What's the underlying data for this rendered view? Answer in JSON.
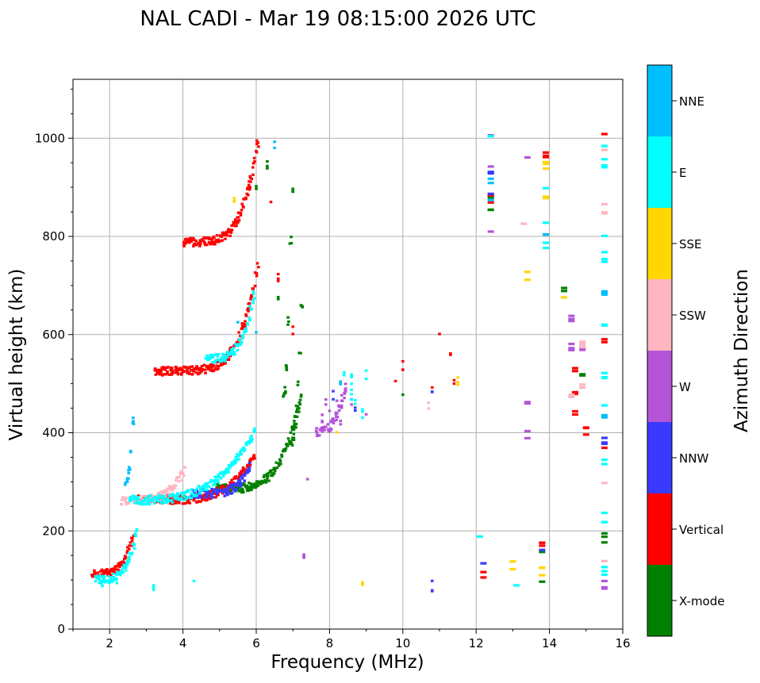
{
  "chart_data": {
    "type": "scatter",
    "title": "NAL CADI - Mar 19 08:15:00 2026 UTC",
    "xlabel": "Frequency (MHz)",
    "ylabel": "Virtual height (km)",
    "xlim": [
      1,
      16
    ],
    "ylim": [
      0,
      1120
    ],
    "xticks": [
      2,
      4,
      6,
      8,
      10,
      12,
      14,
      16
    ],
    "yticks": [
      0,
      200,
      400,
      600,
      800,
      1000
    ],
    "grid": true,
    "colorbar": {
      "label": "Azimuth Direction",
      "position": "right",
      "categories": [
        "X-mode",
        "Vertical",
        "NNW",
        "W",
        "SSW",
        "SSE",
        "E",
        "NNE"
      ],
      "colors": [
        "#008000",
        "#ff0000",
        "#3a3aff",
        "#b455d8",
        "#ffb6c1",
        "#ffd700",
        "#00ffff",
        "#00bfff"
      ]
    },
    "series": [
      {
        "name": "X-mode",
        "traces": [
          {
            "f0": 4.9,
            "f1": 7.2,
            "h0": 285,
            "h1": 480,
            "p": 1.6
          },
          {
            "f0": 6.7,
            "f1": 6.9,
            "h0": 480,
            "h1": 790,
            "p": 1.0
          },
          {
            "f0": 6.9,
            "f1": 7.2,
            "h0": 380,
            "h1": 660,
            "p": 1.0
          }
        ],
        "points": [
          [
            6.0,
            900
          ],
          [
            7.0,
            890
          ],
          [
            6.3,
            950
          ],
          [
            6.6,
            680
          ],
          [
            10.0,
            470
          ],
          [
            12.4,
            850
          ],
          [
            12.4,
            880
          ],
          [
            13.8,
            150
          ],
          [
            13.8,
            110
          ],
          [
            14.4,
            700
          ],
          [
            14.9,
            520
          ],
          [
            15.5,
            190
          ]
        ]
      },
      {
        "name": "Vertical",
        "traces": [
          {
            "f0": 2.7,
            "f1": 5.9,
            "h0": 262,
            "h1": 350,
            "p": 1.8
          },
          {
            "f0": 3.2,
            "f1": 6.0,
            "h0": 525,
            "h1": 740,
            "p": 2.2
          },
          {
            "f0": 4.0,
            "f1": 6.0,
            "h0": 788,
            "h1": 990,
            "p": 1.8
          },
          {
            "f0": 1.5,
            "f1": 2.6,
            "h0": 112,
            "h1": 190,
            "p": 1.6
          }
        ],
        "points": [
          [
            6.6,
            720
          ],
          [
            7.0,
            610
          ],
          [
            9.8,
            500
          ],
          [
            10.0,
            540
          ],
          [
            10.8,
            500
          ],
          [
            11.0,
            600
          ],
          [
            11.3,
            565
          ],
          [
            11.4,
            510
          ],
          [
            12.2,
            110
          ],
          [
            12.4,
            880
          ],
          [
            13.9,
            975
          ],
          [
            13.8,
            170
          ],
          [
            14.7,
            530
          ],
          [
            14.7,
            440
          ],
          [
            14.7,
            480
          ],
          [
            15.0,
            405
          ],
          [
            15.5,
            1010
          ],
          [
            15.5,
            590
          ],
          [
            15.5,
            380
          ],
          [
            6.4,
            870
          ]
        ]
      },
      {
        "name": "NNW",
        "traces": [
          {
            "f0": 4.2,
            "f1": 5.8,
            "h0": 275,
            "h1": 330,
            "p": 1.8
          }
        ],
        "points": [
          [
            8.1,
            480
          ],
          [
            8.7,
            450
          ],
          [
            10.8,
            480
          ],
          [
            10.8,
            90
          ],
          [
            12.2,
            130
          ],
          [
            12.4,
            900
          ],
          [
            12.4,
            940
          ],
          [
            13.8,
            160
          ],
          [
            15.5,
            390
          ]
        ]
      },
      {
        "name": "W",
        "traces": [
          {
            "f0": 7.6,
            "f1": 8.4,
            "h0": 400,
            "h1": 490,
            "p": 1.0
          }
        ],
        "points": [
          [
            7.8,
            430
          ],
          [
            7.9,
            460
          ],
          [
            8.0,
            440
          ],
          [
            8.2,
            470
          ],
          [
            8.3,
            420
          ],
          [
            8.6,
            460
          ],
          [
            9.0,
            430
          ],
          [
            12.4,
            810
          ],
          [
            12.4,
            1000
          ],
          [
            12.4,
            950
          ],
          [
            13.4,
            960
          ],
          [
            13.4,
            395
          ],
          [
            13.4,
            455
          ],
          [
            14.6,
            630
          ],
          [
            14.6,
            575
          ],
          [
            14.9,
            575
          ],
          [
            7.4,
            300
          ],
          [
            7.3,
            150
          ],
          [
            15.5,
            90
          ]
        ]
      },
      {
        "name": "SSW",
        "traces": [
          {
            "f0": 2.3,
            "f1": 4.0,
            "h0": 260,
            "h1": 320,
            "p": 1.4
          }
        ],
        "points": [
          [
            10.7,
            460
          ],
          [
            13.3,
            830
          ],
          [
            14.6,
            470
          ],
          [
            14.9,
            580
          ],
          [
            14.9,
            500
          ],
          [
            15.5,
            980
          ],
          [
            15.5,
            860
          ],
          [
            15.5,
            680
          ],
          [
            15.5,
            290
          ],
          [
            15.5,
            140
          ]
        ]
      },
      {
        "name": "SSE",
        "traces": [],
        "points": [
          [
            5.4,
            880
          ],
          [
            8.2,
            410
          ],
          [
            8.9,
            90
          ],
          [
            11.5,
            505
          ],
          [
            13.0,
            130
          ],
          [
            13.4,
            720
          ],
          [
            13.9,
            950
          ],
          [
            13.9,
            880
          ],
          [
            14.4,
            670
          ],
          [
            13.8,
            120
          ]
        ]
      },
      {
        "name": "E",
        "traces": [
          {
            "f0": 2.5,
            "f1": 5.9,
            "h0": 262,
            "h1": 400,
            "p": 1.3
          },
          {
            "f0": 1.6,
            "f1": 2.7,
            "h0": 100,
            "h1": 200,
            "p": 1.5
          },
          {
            "f0": 4.6,
            "f1": 5.9,
            "h0": 550,
            "h1": 680,
            "p": 1.5
          }
        ],
        "points": [
          [
            8.4,
            520
          ],
          [
            8.6,
            520
          ],
          [
            8.6,
            480
          ],
          [
            8.6,
            500
          ],
          [
            8.7,
            470
          ],
          [
            8.9,
            440
          ],
          [
            9.0,
            520
          ],
          [
            12.1,
            200
          ],
          [
            12.4,
            1000
          ],
          [
            13.1,
            90
          ],
          [
            13.9,
            840
          ],
          [
            13.9,
            780
          ],
          [
            13.9,
            900
          ],
          [
            15.5,
            990
          ],
          [
            15.5,
            950
          ],
          [
            15.5,
            810
          ],
          [
            15.5,
            760
          ],
          [
            15.5,
            620
          ],
          [
            15.5,
            520
          ],
          [
            15.5,
            460
          ],
          [
            15.5,
            340
          ],
          [
            15.5,
            230
          ],
          [
            15.5,
            120
          ],
          [
            3.2,
            90
          ],
          [
            4.3,
            90
          ],
          [
            1.8,
            95
          ],
          [
            2.2,
            95
          ]
        ]
      },
      {
        "name": "NNE",
        "traces": [
          {
            "f0": 2.4,
            "f1": 2.6,
            "h0": 300,
            "h1": 425,
            "p": 1.0
          }
        ],
        "points": [
          [
            6.5,
            990
          ],
          [
            8.3,
            500
          ],
          [
            12.4,
            870
          ],
          [
            12.4,
            920
          ],
          [
            13.9,
            800
          ],
          [
            15.5,
            690
          ],
          [
            15.5,
            440
          ],
          [
            6.0,
            610
          ],
          [
            5.5,
            620
          ]
        ]
      }
    ]
  }
}
